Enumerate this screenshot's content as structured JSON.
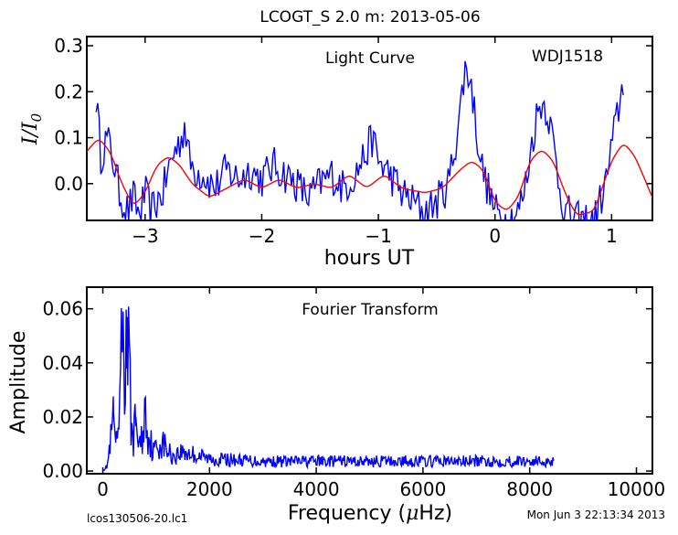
{
  "title": "LCOGT_S 2.0 m:  2013-05-06",
  "footer": {
    "left": "lcos130506-20.lc1",
    "right": "Mon Jun  3 22:13:34 2013"
  },
  "chart_data": [
    {
      "type": "line",
      "panel": "top",
      "annotation_left": "Light Curve",
      "annotation_right": "WDJ1518",
      "xlabel": "hours UT",
      "ylabel": "I/I₀",
      "ylabel_parts": {
        "main": "I/I",
        "sub": "0"
      },
      "xlim": [
        -3.5,
        1.35
      ],
      "ylim": [
        -0.08,
        0.32
      ],
      "xticks": [
        -3,
        -2,
        -1,
        0,
        1
      ],
      "xtick_labels": [
        "−3",
        "−2",
        "−1",
        "0",
        "1"
      ],
      "yticks": [
        0.0,
        0.1,
        0.2,
        0.3
      ],
      "ytick_labels": [
        "0.0",
        "0.1",
        "0.2",
        "0.3"
      ],
      "grid": false,
      "series": [
        {
          "role": "data",
          "color": "#0000ff",
          "anchors": [
            [
              -3.42,
              0.19
            ],
            [
              -3.38,
              0.06
            ],
            [
              -3.33,
              0.1
            ],
            [
              -3.28,
              0.06
            ],
            [
              -3.22,
              -0.02
            ],
            [
              -3.15,
              -0.06
            ],
            [
              -3.1,
              -0.03
            ],
            [
              -3.05,
              -0.07
            ],
            [
              -3.0,
              -0.02
            ],
            [
              -2.95,
              -0.06
            ],
            [
              -2.9,
              -0.04
            ],
            [
              -2.85,
              -0.02
            ],
            [
              -2.8,
              0.03
            ],
            [
              -2.75,
              0.07
            ],
            [
              -2.7,
              0.09
            ],
            [
              -2.66,
              0.13
            ],
            [
              -2.62,
              0.05
            ],
            [
              -2.58,
              0.03
            ],
            [
              -2.5,
              0.02
            ],
            [
              -2.4,
              -0.01
            ],
            [
              -2.3,
              0.03
            ],
            [
              -2.2,
              0.01
            ],
            [
              -2.1,
              0.03
            ],
            [
              -2.0,
              0.01
            ],
            [
              -1.9,
              0.04
            ],
            [
              -1.8,
              0.02
            ],
            [
              -1.7,
              0.0
            ],
            [
              -1.6,
              -0.03
            ],
            [
              -1.5,
              0.0
            ],
            [
              -1.4,
              0.02
            ],
            [
              -1.3,
              -0.01
            ],
            [
              -1.2,
              0.02
            ],
            [
              -1.1,
              0.07
            ],
            [
              -1.05,
              0.1
            ],
            [
              -1.0,
              0.05
            ],
            [
              -0.9,
              0.02
            ],
            [
              -0.8,
              -0.02
            ],
            [
              -0.7,
              -0.04
            ],
            [
              -0.6,
              -0.06
            ],
            [
              -0.5,
              -0.04
            ],
            [
              -0.4,
              0.0
            ],
            [
              -0.33,
              0.1
            ],
            [
              -0.28,
              0.2
            ],
            [
              -0.25,
              0.26
            ],
            [
              -0.2,
              0.21
            ],
            [
              -0.15,
              0.1
            ],
            [
              -0.1,
              0.02
            ],
            [
              -0.05,
              -0.02
            ],
            [
              0.0,
              -0.06
            ],
            [
              0.1,
              -0.08
            ],
            [
              0.2,
              -0.06
            ],
            [
              0.25,
              -0.02
            ],
            [
              0.3,
              0.06
            ],
            [
              0.35,
              0.14
            ],
            [
              0.4,
              0.18
            ],
            [
              0.45,
              0.16
            ],
            [
              0.5,
              0.09
            ],
            [
              0.55,
              0.0
            ],
            [
              0.6,
              -0.06
            ],
            [
              0.7,
              -0.08
            ],
            [
              0.85,
              -0.08
            ],
            [
              0.95,
              0.0
            ],
            [
              1.0,
              0.08
            ],
            [
              1.05,
              0.15
            ],
            [
              1.1,
              0.22
            ]
          ]
        },
        {
          "role": "fit",
          "color": "#ff0000",
          "anchors": [
            [
              -3.5,
              0.07
            ],
            [
              -3.4,
              0.1
            ],
            [
              -3.3,
              0.07
            ],
            [
              -3.2,
              0.0
            ],
            [
              -3.1,
              -0.05
            ],
            [
              -3.0,
              -0.02
            ],
            [
              -2.9,
              0.04
            ],
            [
              -2.8,
              0.06
            ],
            [
              -2.7,
              0.04
            ],
            [
              -2.6,
              0.0
            ],
            [
              -2.45,
              -0.03
            ],
            [
              -2.3,
              -0.01
            ],
            [
              -2.15,
              0.01
            ],
            [
              -2.0,
              -0.01
            ],
            [
              -1.85,
              0.01
            ],
            [
              -1.7,
              -0.01
            ],
            [
              -1.55,
              0.0
            ],
            [
              -1.4,
              -0.01
            ],
            [
              -1.25,
              0.02
            ],
            [
              -1.1,
              -0.01
            ],
            [
              -0.95,
              0.02
            ],
            [
              -0.8,
              -0.01
            ],
            [
              -0.6,
              -0.02
            ],
            [
              -0.45,
              -0.01
            ],
            [
              -0.3,
              0.03
            ],
            [
              -0.2,
              0.05
            ],
            [
              -0.1,
              0.03
            ],
            [
              0.0,
              -0.04
            ],
            [
              0.1,
              -0.06
            ],
            [
              0.2,
              -0.03
            ],
            [
              0.3,
              0.05
            ],
            [
              0.4,
              0.075
            ],
            [
              0.5,
              0.05
            ],
            [
              0.6,
              -0.02
            ],
            [
              0.7,
              -0.07
            ],
            [
              0.85,
              -0.06
            ],
            [
              1.0,
              0.05
            ],
            [
              1.1,
              0.09
            ],
            [
              1.2,
              0.06
            ],
            [
              1.35,
              -0.03
            ]
          ]
        }
      ]
    },
    {
      "type": "line",
      "panel": "bottom",
      "annotation": "Fourier Transform",
      "xlabel": "Frequency (μHz)",
      "xlabel_parts": {
        "pre": "Frequency (",
        "greek": "μ",
        "post": "Hz)"
      },
      "ylabel": "Amplitude",
      "xlim": [
        -300,
        10300
      ],
      "ylim": [
        -0.001,
        0.068
      ],
      "xticks": [
        0,
        2000,
        4000,
        6000,
        8000,
        10000
      ],
      "xtick_labels": [
        "0",
        "2000",
        "4000",
        "6000",
        "8000",
        "10000"
      ],
      "yticks": [
        0.0,
        0.02,
        0.04,
        0.06
      ],
      "ytick_labels": [
        "0.00",
        "0.02",
        "0.04",
        "0.06"
      ],
      "grid": false,
      "series": [
        {
          "role": "spectrum",
          "color": "#0000ff",
          "anchors": [
            [
              0,
              0.0
            ],
            [
              80,
              0.002
            ],
            [
              150,
              0.012
            ],
            [
              200,
              0.022
            ],
            [
              240,
              0.012
            ],
            [
              280,
              0.008
            ],
            [
              330,
              0.035
            ],
            [
              380,
              0.059
            ],
            [
              420,
              0.04
            ],
            [
              460,
              0.057
            ],
            [
              500,
              0.035
            ],
            [
              560,
              0.012
            ],
            [
              620,
              0.02
            ],
            [
              700,
              0.01
            ],
            [
              760,
              0.016
            ],
            [
              800,
              0.027
            ],
            [
              850,
              0.015
            ],
            [
              950,
              0.008
            ],
            [
              1100,
              0.012
            ],
            [
              1300,
              0.006
            ],
            [
              1500,
              0.008
            ],
            [
              2000,
              0.005
            ],
            [
              3000,
              0.004
            ],
            [
              4000,
              0.004
            ],
            [
              6000,
              0.004
            ],
            [
              8000,
              0.004
            ],
            [
              8450,
              0.004
            ]
          ]
        }
      ]
    }
  ]
}
